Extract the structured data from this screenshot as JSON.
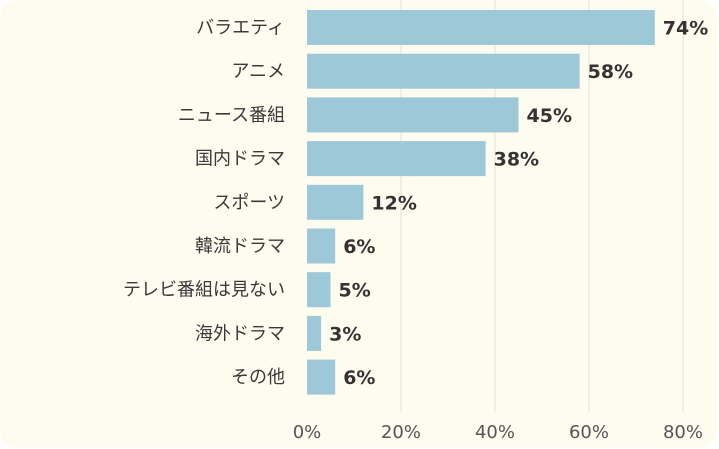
{
  "chart_data": {
    "type": "bar",
    "orientation": "horizontal",
    "categories": [
      "バラエティ",
      "アニメ",
      "ニュース番組",
      "国内ドラマ",
      "スポーツ",
      "韓流ドラマ",
      "テレビ番組は見ない",
      "海外ドラマ",
      "その他"
    ],
    "values": [
      74,
      58,
      45,
      38,
      12,
      6,
      5,
      3,
      6
    ],
    "value_labels": [
      "74%",
      "58%",
      "45%",
      "38%",
      "12%",
      "6%",
      "5%",
      "3%",
      "6%"
    ],
    "x_ticks": [
      "0%",
      "20%",
      "40%",
      "60%",
      "80%"
    ],
    "xlim": [
      0,
      80
    ],
    "grid": true,
    "bar_color": "#9dc8d8",
    "background": "#fdfcef",
    "gridline_color": "#e3e2d8"
  }
}
